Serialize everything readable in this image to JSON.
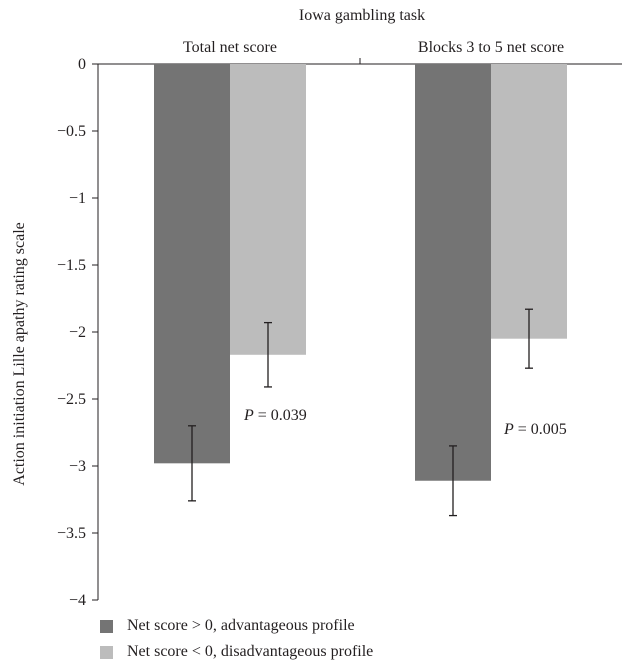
{
  "chart_data": {
    "type": "bar",
    "title": "Iowa gambling task",
    "ylabel": "Action initiation Lille apathy rating scale",
    "xlabel": "",
    "categories": [
      "Total net score",
      "Blocks 3 to 5 net score"
    ],
    "series": [
      {
        "name": "Net score > 0, advantageous profile",
        "color": "#747474",
        "values": [
          -2.98,
          -3.11
        ],
        "errors": [
          0.28,
          0.26
        ]
      },
      {
        "name": "Net score < 0, disadvantageous profile",
        "color": "#bcbcbc",
        "values": [
          -2.17,
          -2.05
        ],
        "errors": [
          0.24,
          0.22
        ]
      }
    ],
    "ylim": [
      -4,
      0
    ],
    "yticks": [
      0,
      -0.5,
      -1,
      -1.5,
      -2,
      -2.5,
      -3,
      -3.5,
      -4
    ],
    "ytick_labels": [
      "0",
      "−0.5",
      "−1",
      "−1.5",
      "−2",
      "−2.5",
      "−3",
      "−3.5",
      "−4"
    ],
    "annotations": [
      {
        "category": "Total net score",
        "label": "P",
        "text": " = 0.039"
      },
      {
        "category": "Blocks 3 to 5 net score",
        "label": "P",
        "text": " = 0.005"
      }
    ],
    "legend_position": "bottom",
    "grid": false
  }
}
